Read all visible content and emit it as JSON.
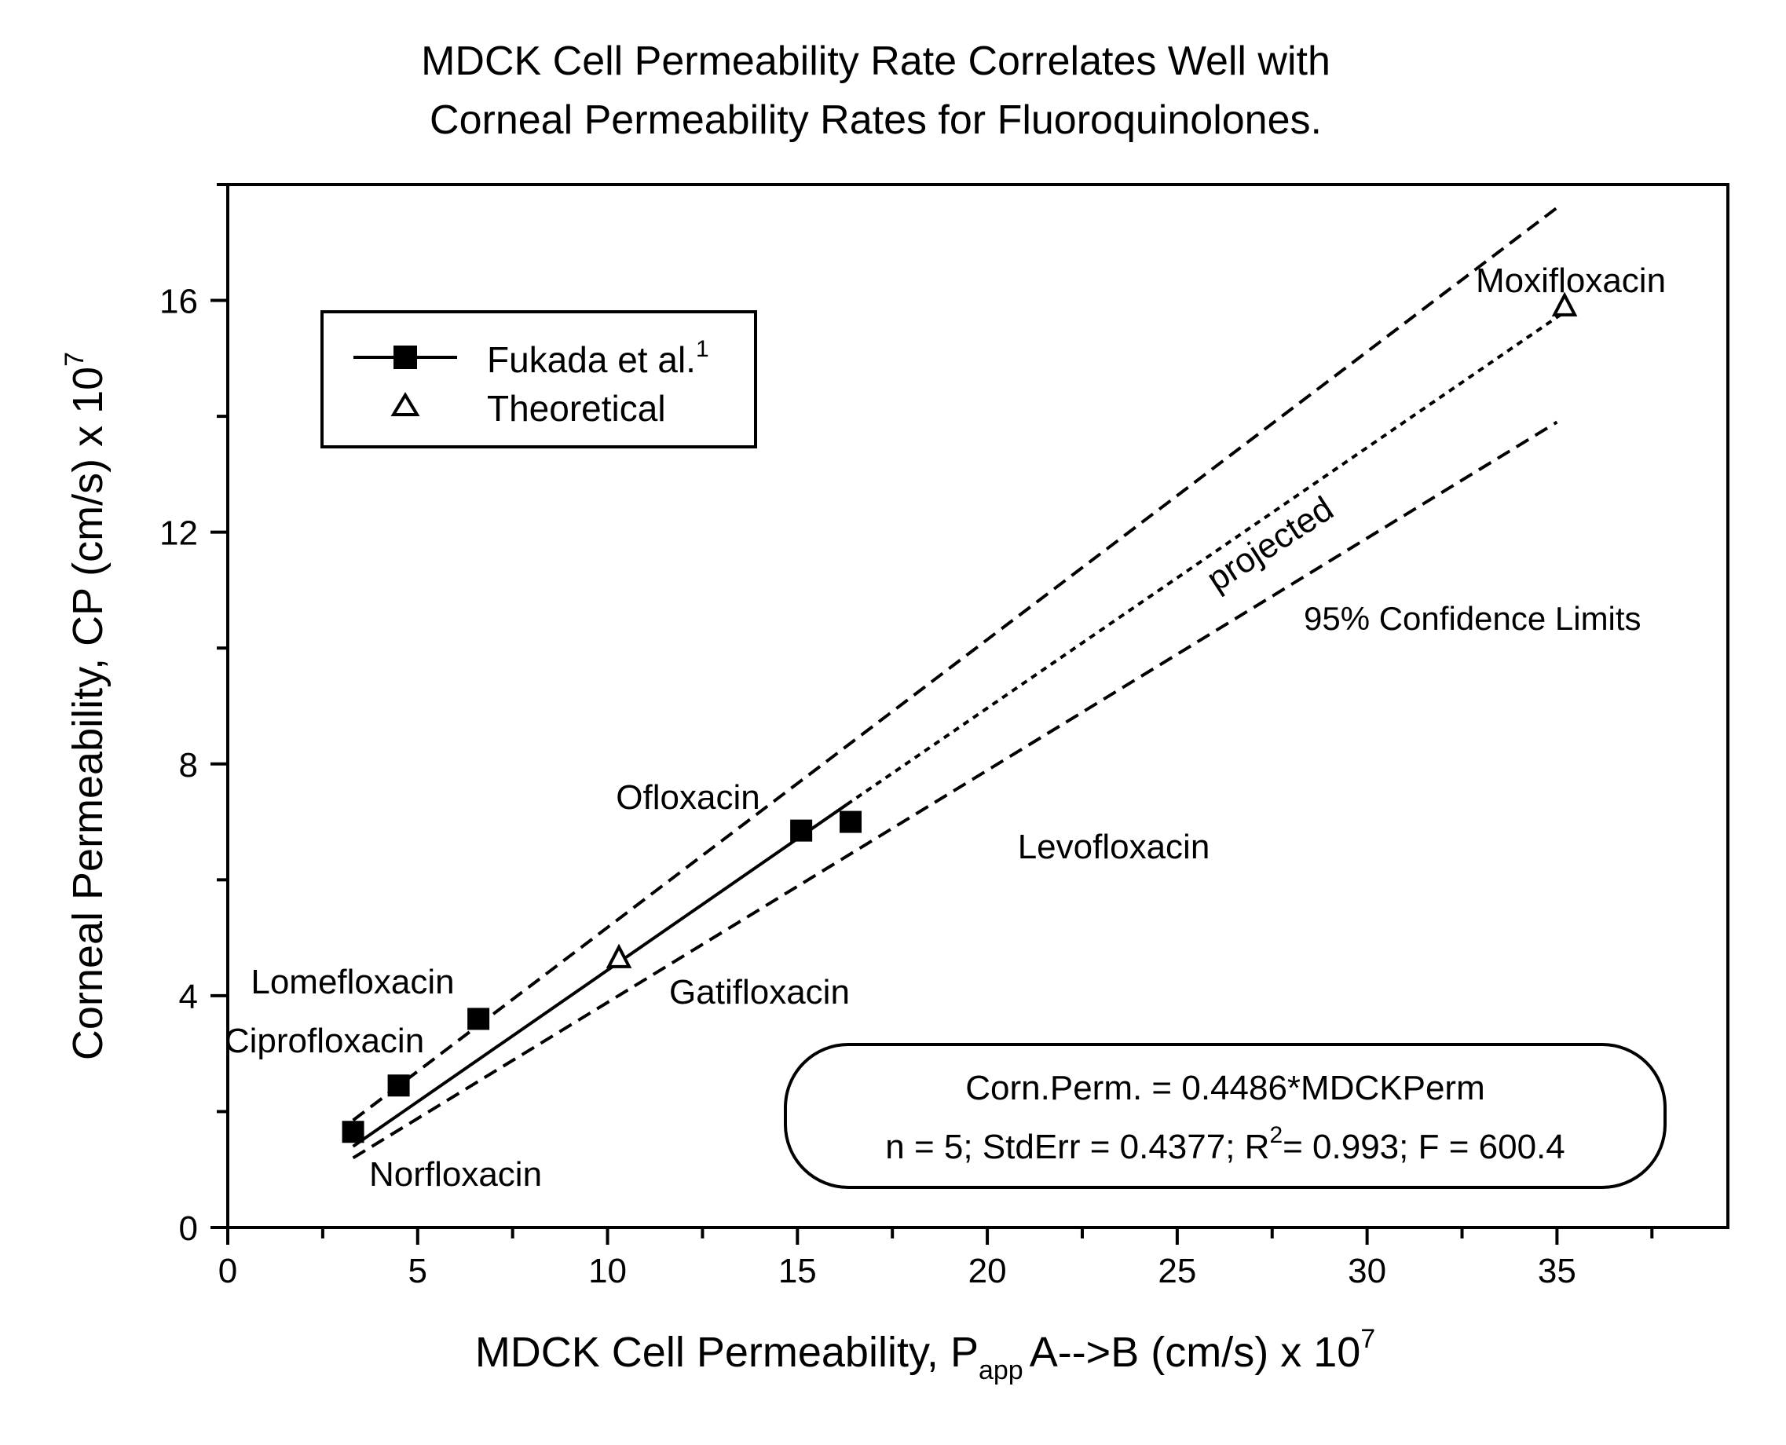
{
  "chart_data": {
    "type": "scatter",
    "title_line1": "MDCK Cell Permeability Rate Correlates Well with",
    "title_line2": "Corneal Permeability Rates for Fluoroquinolones.",
    "xlabel_main": "MDCK Cell Permeability, P",
    "xlabel_sub": "app",
    "xlabel_rest": "A-->B (cm/s) x 10",
    "xlabel_sup": "7",
    "ylabel_main": "Corneal Permeability, CP (cm/s) x 10",
    "ylabel_sup": "7",
    "xlim": [
      0,
      39.5
    ],
    "ylim": [
      0,
      18
    ],
    "x_ticks": [
      0,
      5,
      10,
      15,
      20,
      25,
      30,
      35
    ],
    "y_ticks": [
      0,
      4,
      8,
      12,
      16
    ],
    "grid": false,
    "legend_position": "top-left",
    "series": [
      {
        "name": "Fukada et al.",
        "name_sup": "1",
        "marker": "filled-square",
        "points": [
          {
            "label": "Norfloxacin",
            "x": 3.3,
            "y": 1.65
          },
          {
            "label": "Ciprofloxacin",
            "x": 4.5,
            "y": 2.45
          },
          {
            "label": "Lomefloxacin",
            "x": 6.6,
            "y": 3.6
          },
          {
            "label": "Ofloxacin",
            "x": 15.1,
            "y": 6.85
          },
          {
            "label": "Levofloxacin",
            "x": 16.4,
            "y": 7.0
          }
        ]
      },
      {
        "name": "Theoretical",
        "marker": "open-triangle",
        "points": [
          {
            "label": "Gatifloxacin",
            "x": 10.3,
            "y": 4.65
          },
          {
            "label": "Moxifloxacin",
            "x": 35.2,
            "y": 15.9
          }
        ]
      }
    ],
    "fit_line": {
      "x": [
        3.3,
        16.3
      ],
      "y": [
        1.4,
        7.3
      ]
    },
    "projected_line": {
      "x": [
        16.3,
        35.2
      ],
      "y": [
        7.3,
        15.8
      ],
      "label": "projected"
    },
    "confidence_upper": {
      "x": [
        3.3,
        35.0
      ],
      "y": [
        1.85,
        17.6
      ]
    },
    "confidence_lower": {
      "x": [
        3.3,
        35.0
      ],
      "y": [
        1.2,
        13.9
      ]
    },
    "confidence_label": "95% Confidence Limits",
    "equation_line1": "Corn.Perm. = 0.4486*MDCKPerm",
    "equation_line2_part1": "n = 5; StdErr = 0.4377; R",
    "equation_line2_sup": "2",
    "equation_line2_part2": "= 0.993; F = 600.4"
  }
}
